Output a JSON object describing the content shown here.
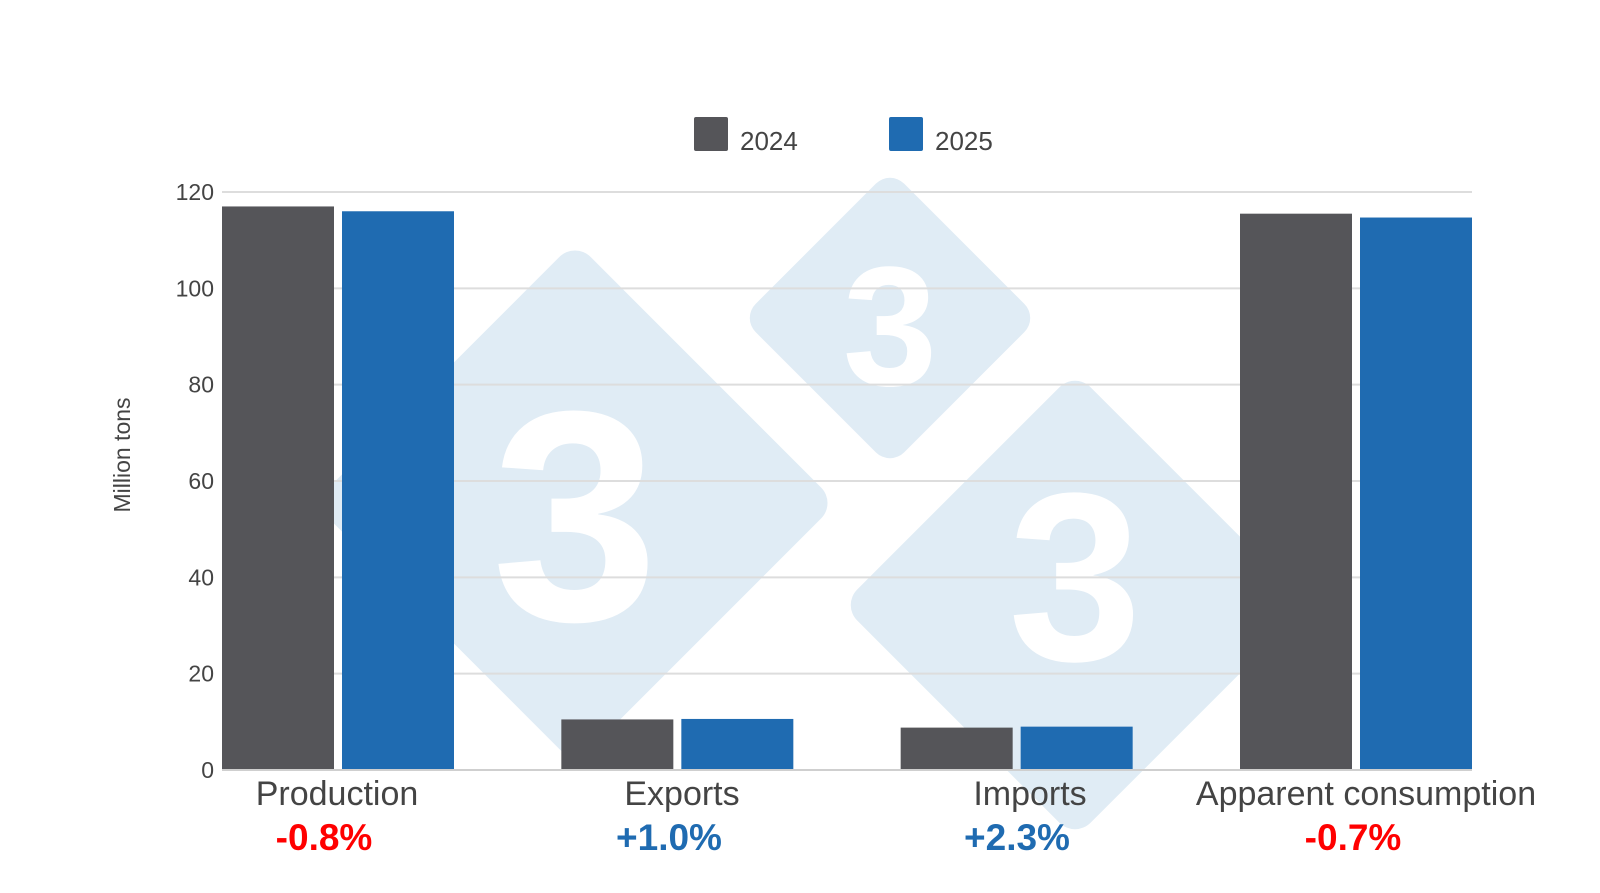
{
  "chart_data": {
    "type": "bar",
    "categories": [
      "Production",
      "Exports",
      "Imports",
      "Apparent consumption"
    ],
    "series": [
      {
        "name": "2024",
        "color": "#555559",
        "values": [
          117,
          10.5,
          8.8,
          115.5
        ]
      },
      {
        "name": "2025",
        "color": "#1f6bb1",
        "values": [
          116,
          10.6,
          9.0,
          114.7
        ]
      }
    ],
    "changes": [
      {
        "text": "-0.8%",
        "color": "#ff0000"
      },
      {
        "text": "+1.0%",
        "color": "#1f6bb1"
      },
      {
        "text": "+2.3%",
        "color": "#1f6bb1"
      },
      {
        "text": "-0.7%",
        "color": "#ff0000"
      }
    ],
    "ylabel": "Million tons",
    "ylim": [
      0,
      120
    ],
    "yticks": [
      0,
      20,
      40,
      60,
      80,
      100,
      120
    ],
    "grid": true,
    "legend_position": "top-center",
    "watermark": {
      "text": "3",
      "color": "#e0ecf5"
    }
  }
}
